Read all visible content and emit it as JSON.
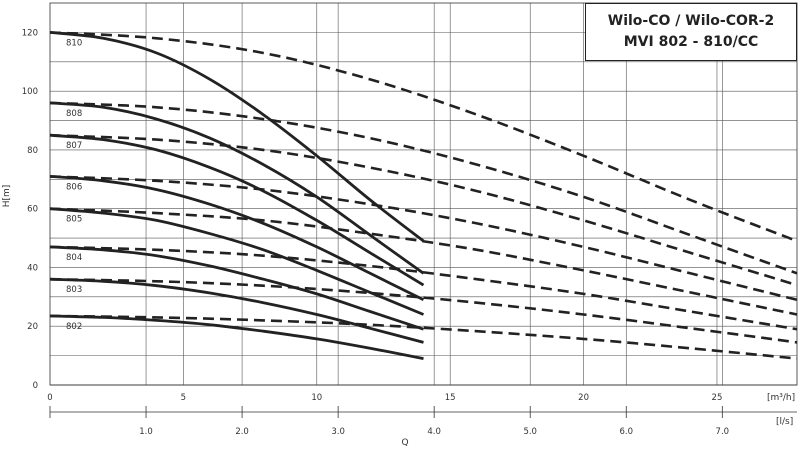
{
  "chart_data": {
    "type": "line",
    "title": [
      "Wilo-CO / Wilo-COR-2",
      "MVI 802 - 810/CC"
    ],
    "ylabel": "H[m]",
    "xlabel": "Q",
    "x_unit_top": "[m³/h]",
    "x_unit_bottom": "[l/s]",
    "xlim": [
      0,
      28
    ],
    "ylim": [
      0,
      130
    ],
    "yticks": [
      0,
      20,
      40,
      60,
      80,
      100,
      120
    ],
    "xticks_m3h": [
      0,
      5,
      10,
      15,
      20,
      25
    ],
    "xticks_ls": [
      1.0,
      2.0,
      3.0,
      4.0,
      5.0,
      6.0,
      7.0
    ],
    "grid_x": [
      5,
      10,
      15,
      20,
      25
    ],
    "grid_y": [
      10,
      20,
      30,
      40,
      50,
      60,
      70,
      80,
      90,
      100,
      110,
      120
    ],
    "single_pump_style": "solid",
    "two_pump_style": "dashed",
    "series": [
      {
        "name": "810",
        "single": {
          "x": [
            0,
            2,
            4,
            6,
            8,
            10,
            12,
            14
          ],
          "y": [
            120,
            118,
            113,
            104,
            92,
            78,
            63,
            49
          ]
        },
        "dual": {
          "x": [
            0,
            4,
            8,
            12,
            16,
            20,
            24,
            28
          ],
          "y": [
            120,
            118,
            113,
            104,
            92,
            78,
            63,
            49
          ]
        }
      },
      {
        "name": "808",
        "single": {
          "x": [
            0,
            2,
            4,
            6,
            8,
            10,
            12,
            14
          ],
          "y": [
            96,
            94.5,
            90.5,
            84,
            75,
            64,
            51,
            38
          ]
        },
        "dual": {
          "x": [
            0,
            4,
            8,
            12,
            16,
            20,
            24,
            28
          ],
          "y": [
            96,
            94.5,
            90.5,
            84,
            75,
            64,
            51,
            38
          ]
        }
      },
      {
        "name": "807",
        "single": {
          "x": [
            0,
            2,
            4,
            6,
            8,
            10,
            12,
            14
          ],
          "y": [
            85,
            83.5,
            80,
            74,
            66,
            56,
            45,
            34
          ]
        },
        "dual": {
          "x": [
            0,
            4,
            8,
            12,
            16,
            20,
            24,
            28
          ],
          "y": [
            85,
            83.5,
            80,
            74,
            66,
            56,
            45,
            34
          ]
        }
      },
      {
        "name": "806",
        "single": {
          "x": [
            0,
            2,
            4,
            6,
            8,
            10,
            12,
            14
          ],
          "y": [
            71,
            69.5,
            66.5,
            61.5,
            55,
            47,
            38,
            29
          ]
        },
        "dual": {
          "x": [
            0,
            4,
            8,
            12,
            16,
            20,
            24,
            28
          ],
          "y": [
            71,
            69.5,
            66.5,
            61.5,
            55,
            47,
            38,
            29
          ]
        }
      },
      {
        "name": "805",
        "single": {
          "x": [
            0,
            2,
            4,
            6,
            8,
            10,
            12,
            14
          ],
          "y": [
            60,
            58.5,
            56,
            51.5,
            46,
            39,
            31.5,
            24
          ]
        },
        "dual": {
          "x": [
            0,
            4,
            8,
            12,
            16,
            20,
            24,
            28
          ],
          "y": [
            60,
            58.5,
            56,
            51.5,
            46,
            39,
            31.5,
            24
          ]
        }
      },
      {
        "name": "804",
        "single": {
          "x": [
            0,
            2,
            4,
            6,
            8,
            10,
            12,
            14
          ],
          "y": [
            47,
            46,
            44,
            40.5,
            36,
            31,
            25,
            19
          ]
        },
        "dual": {
          "x": [
            0,
            4,
            8,
            12,
            16,
            20,
            24,
            28
          ],
          "y": [
            47,
            46,
            44,
            40.5,
            36,
            31,
            25,
            19
          ]
        }
      },
      {
        "name": "803",
        "single": {
          "x": [
            0,
            2,
            4,
            6,
            8,
            10,
            12,
            14
          ],
          "y": [
            36,
            35.3,
            33.8,
            31.3,
            28,
            24,
            19.3,
            14.5
          ]
        },
        "dual": {
          "x": [
            0,
            4,
            8,
            12,
            16,
            20,
            24,
            28
          ],
          "y": [
            36,
            35.3,
            33.8,
            31.3,
            28,
            24,
            19.3,
            14.5
          ]
        }
      },
      {
        "name": "802",
        "single": {
          "x": [
            0,
            2,
            4,
            6,
            8,
            10,
            12,
            14
          ],
          "y": [
            23.5,
            23,
            22,
            20.5,
            18.3,
            15.7,
            12.5,
            9
          ]
        },
        "dual": {
          "x": [
            0,
            4,
            8,
            12,
            16,
            20,
            24,
            28
          ],
          "y": [
            23.5,
            23,
            22,
            20.5,
            18.3,
            15.7,
            12.5,
            9
          ]
        }
      }
    ]
  }
}
